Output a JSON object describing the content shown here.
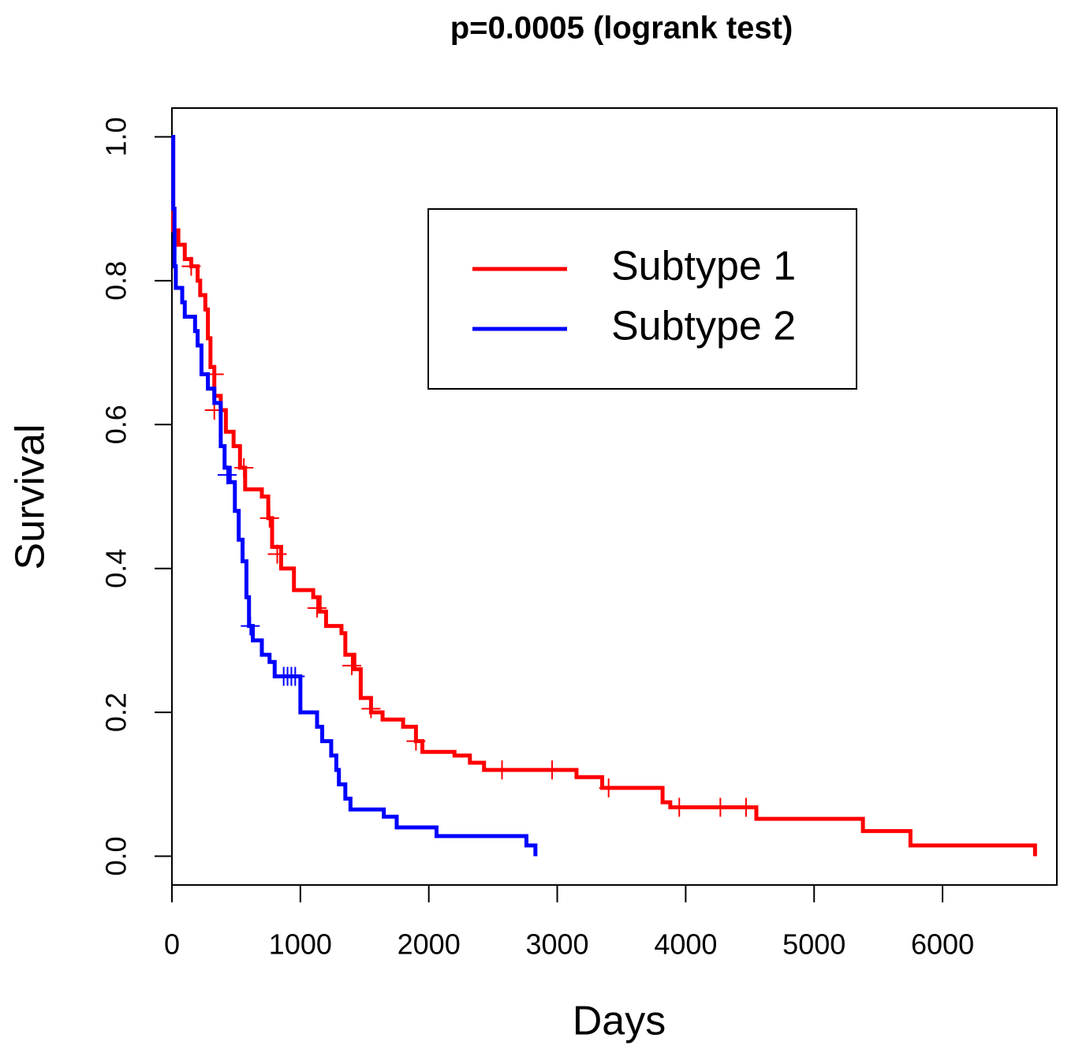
{
  "chart_data": {
    "type": "survival-step",
    "title": "p=0.0005 (logrank test)",
    "x_label": "Days",
    "y_label": "Survival",
    "xlim": [
      0,
      6890
    ],
    "ylim": [
      -0.04,
      1.04
    ],
    "xticks": [
      0,
      1000,
      2000,
      3000,
      4000,
      5000,
      6000
    ],
    "yticks": [
      {
        "value": 0,
        "label": "0.0"
      },
      0.2,
      0.4,
      0.6,
      0.8,
      {
        "value": 1,
        "label": "1.0"
      }
    ],
    "legend": "top-right",
    "series": [
      {
        "name": "Subtype 1",
        "color": "#ff0000",
        "x": [
          0,
          10,
          50,
          100,
          150,
          200,
          220,
          260,
          280,
          300,
          330,
          380,
          420,
          480,
          530,
          570,
          700,
          750,
          780,
          850,
          950,
          1100,
          1150,
          1200,
          1320,
          1350,
          1420,
          1470,
          1550,
          1640,
          1800,
          1900,
          1950,
          2200,
          2320,
          2430,
          3150,
          3350,
          3820,
          3880,
          4550,
          5380,
          5750,
          6720
        ],
        "values": [
          1.0,
          0.87,
          0.85,
          0.83,
          0.82,
          0.8,
          0.78,
          0.76,
          0.72,
          0.68,
          0.64,
          0.62,
          0.59,
          0.57,
          0.54,
          0.51,
          0.5,
          0.47,
          0.43,
          0.4,
          0.37,
          0.36,
          0.34,
          0.32,
          0.31,
          0.28,
          0.26,
          0.22,
          0.2,
          0.19,
          0.18,
          0.16,
          0.145,
          0.14,
          0.13,
          0.12,
          0.11,
          0.095,
          0.075,
          0.068,
          0.052,
          0.035,
          0.015,
          0.0
        ],
        "censored": {
          "x": [
            150,
            330,
            330,
            560,
            760,
            820,
            1130,
            1400,
            1550,
            1900,
            2570,
            2960,
            3400,
            3950,
            4270,
            4470
          ],
          "values": [
            0.82,
            0.67,
            0.62,
            0.54,
            0.47,
            0.42,
            0.345,
            0.265,
            0.205,
            0.16,
            0.12,
            0.12,
            0.095,
            0.068,
            0.068,
            0.068
          ]
        }
      },
      {
        "name": "Subtype 2",
        "color": "#0000ff",
        "x": [
          0,
          10,
          20,
          30,
          80,
          100,
          180,
          200,
          230,
          280,
          330,
          380,
          410,
          450,
          490,
          520,
          550,
          580,
          600,
          630,
          700,
          760,
          800,
          1000,
          1130,
          1170,
          1240,
          1280,
          1300,
          1350,
          1390,
          1650,
          1750,
          2060,
          2760,
          2830
        ],
        "values": [
          1.0,
          0.9,
          0.82,
          0.79,
          0.77,
          0.75,
          0.73,
          0.71,
          0.67,
          0.65,
          0.63,
          0.57,
          0.54,
          0.52,
          0.48,
          0.44,
          0.41,
          0.36,
          0.32,
          0.3,
          0.28,
          0.27,
          0.25,
          0.2,
          0.18,
          0.16,
          0.14,
          0.12,
          0.1,
          0.08,
          0.065,
          0.055,
          0.04,
          0.028,
          0.015,
          0.0
        ],
        "censored": {
          "x": [
            430,
            610,
            870,
            900,
            930,
            960
          ],
          "values": [
            0.53,
            0.32,
            0.25,
            0.25,
            0.25,
            0.25
          ]
        }
      }
    ]
  }
}
